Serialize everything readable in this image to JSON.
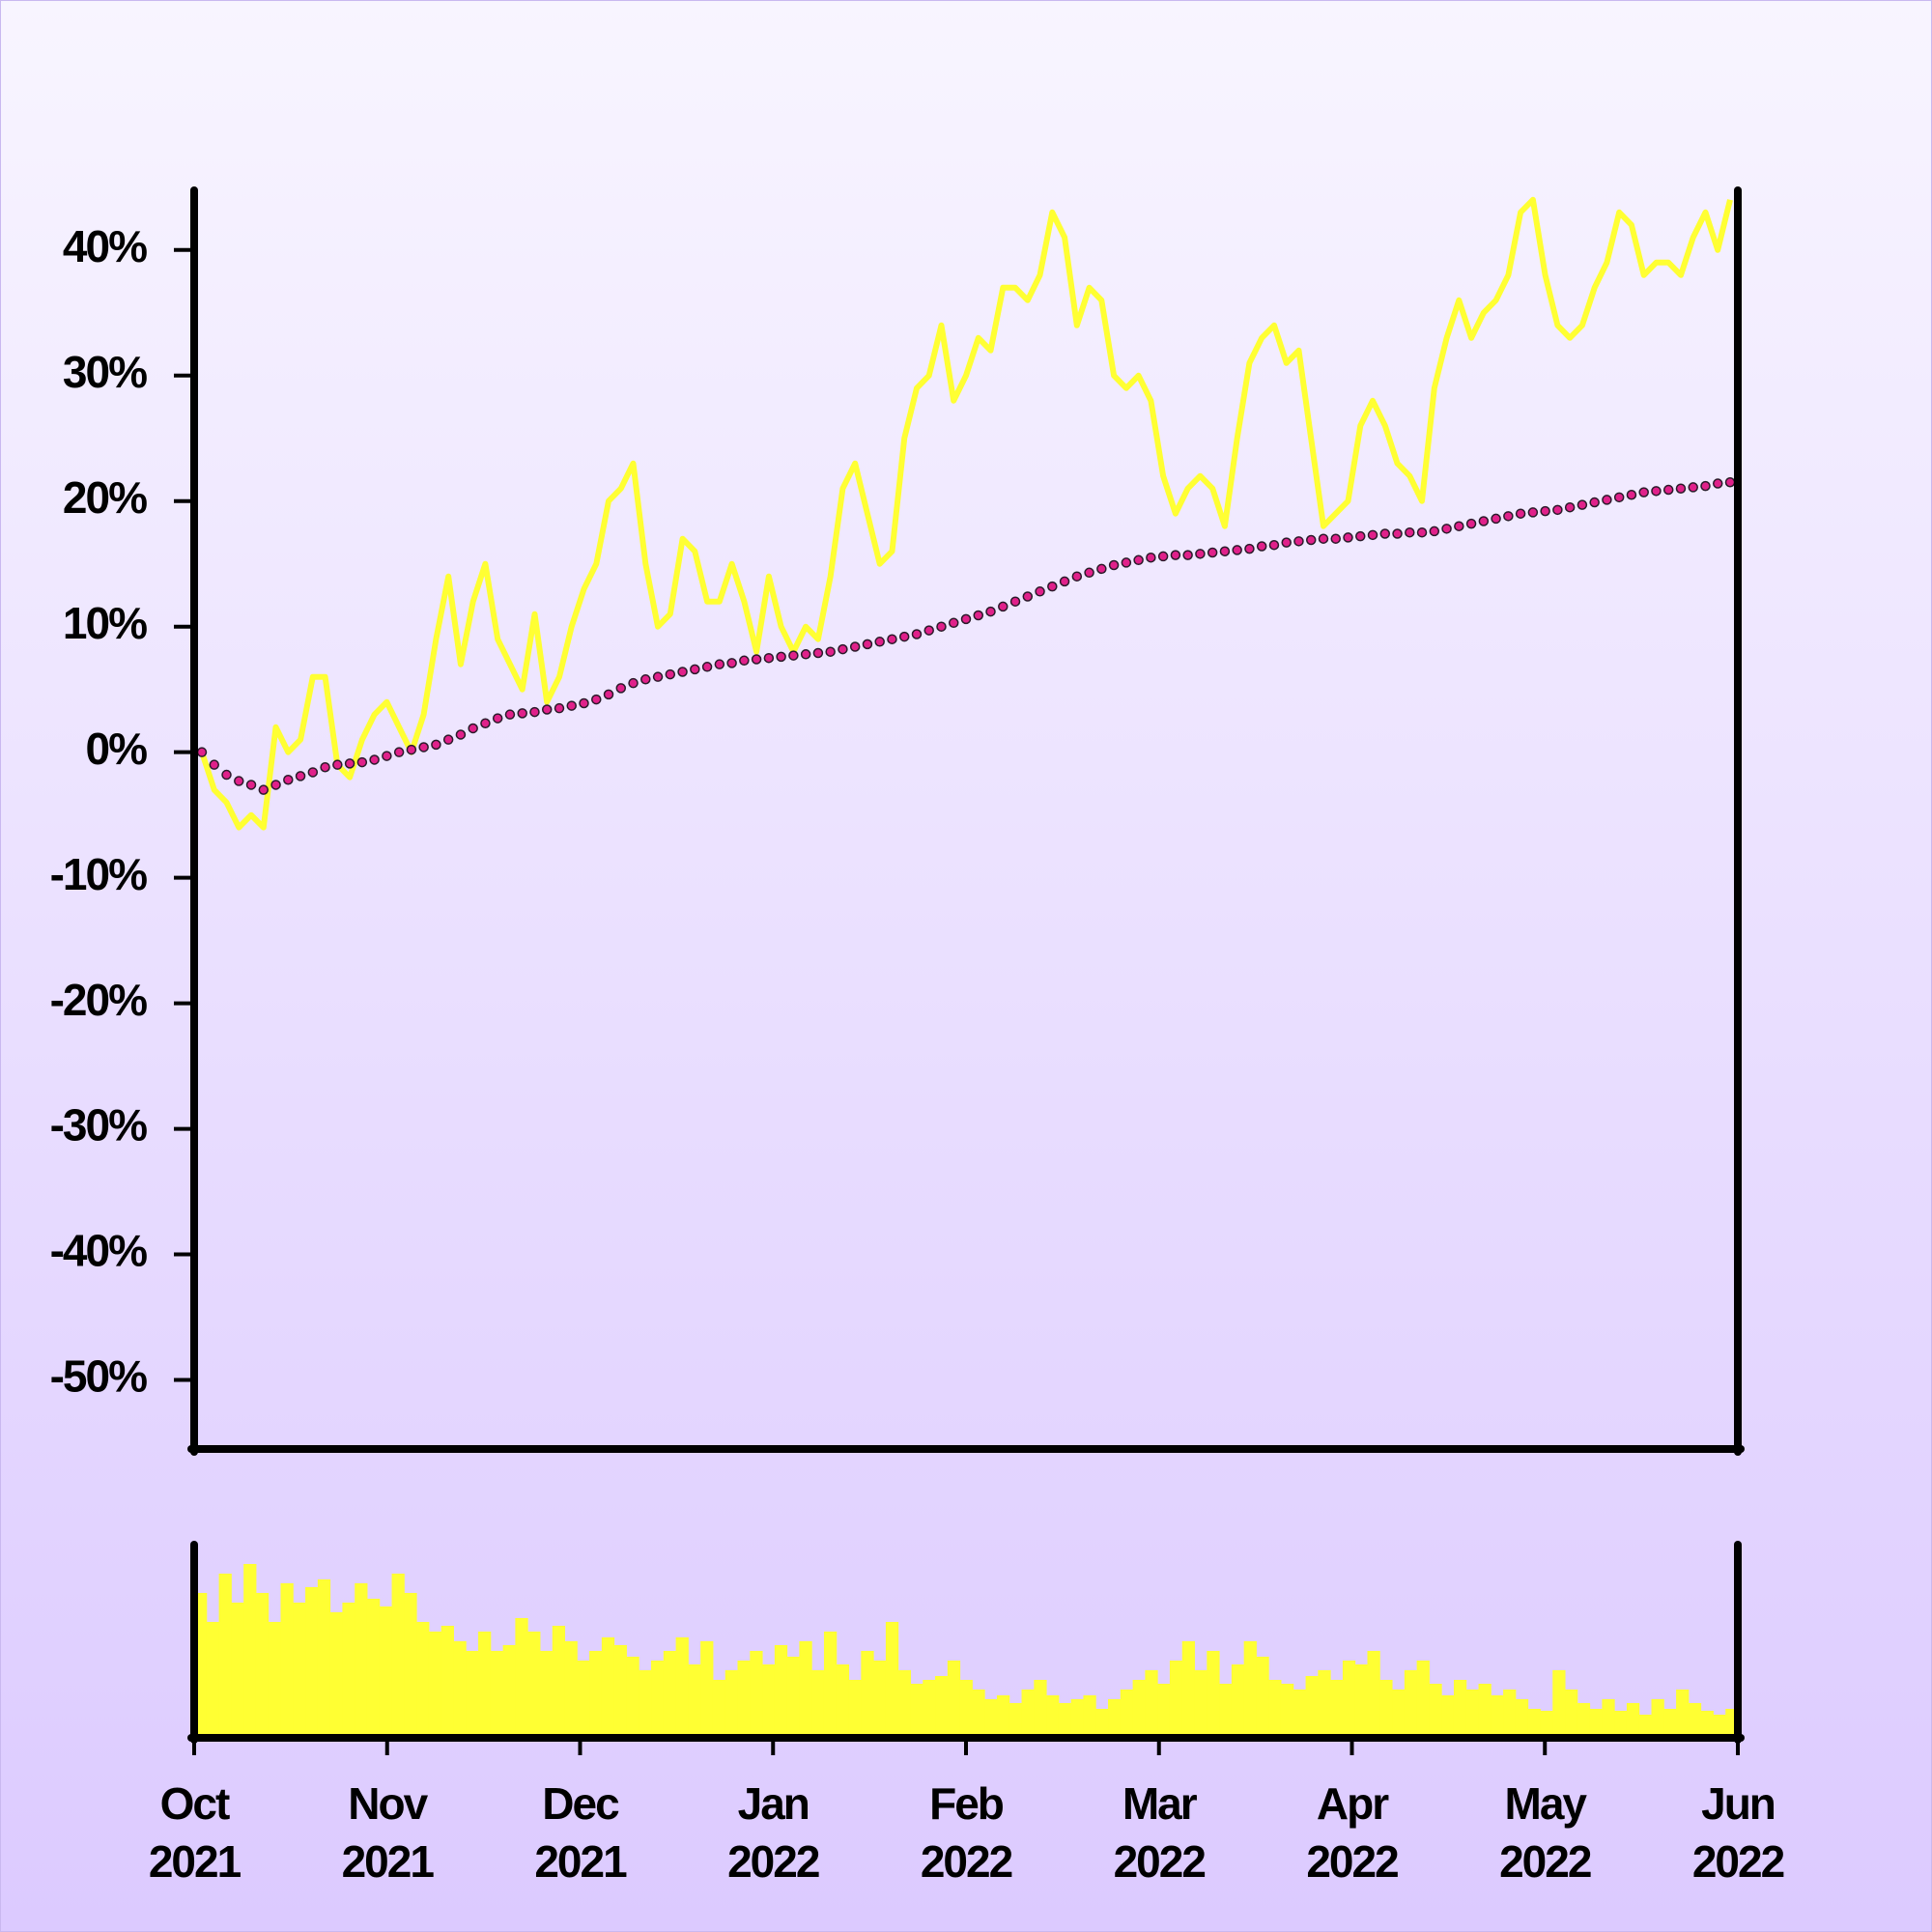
{
  "chart_data": [
    {
      "type": "line",
      "xlim": [
        "2021-10",
        "2022-06"
      ],
      "ylim": [
        -55.5,
        44.6
      ],
      "yticks": [
        {
          "value": 40,
          "label": "40%"
        },
        {
          "value": 30,
          "label": "30%"
        },
        {
          "value": 20,
          "label": "20%"
        },
        {
          "value": 10,
          "label": "10%"
        },
        {
          "value": 0,
          "label": "0%"
        },
        {
          "value": -10,
          "label": "-10%"
        },
        {
          "value": -20,
          "label": "-20%"
        },
        {
          "value": -30,
          "label": "-30%"
        },
        {
          "value": -40,
          "label": "-40%"
        },
        {
          "value": -50,
          "label": "-50%"
        }
      ],
      "series": [
        {
          "style": "line",
          "color": "#ffff33",
          "values": [
            0,
            -3,
            -4,
            -6,
            -5,
            -6,
            2,
            0,
            1,
            6,
            6,
            -1,
            -2,
            1,
            3,
            4,
            2,
            0,
            3,
            9,
            14,
            7,
            12,
            15,
            9,
            7,
            5,
            11,
            4,
            6,
            10,
            13,
            15,
            20,
            21,
            23,
            15,
            10,
            11,
            17,
            16,
            12,
            12,
            15,
            12,
            8,
            14,
            10,
            8,
            10,
            9,
            14,
            21,
            23,
            19,
            15,
            16,
            25,
            29,
            30,
            34,
            28,
            30,
            33,
            32,
            37,
            37,
            36,
            38,
            43,
            41,
            34,
            37,
            36,
            30,
            29,
            30,
            28,
            22,
            19,
            21,
            22,
            21,
            18,
            25,
            31,
            33,
            34,
            31,
            32,
            25,
            18,
            19,
            20,
            26,
            28,
            26,
            23,
            22,
            20,
            29,
            33,
            36,
            33,
            35,
            36,
            38,
            43,
            44,
            38,
            34,
            33,
            34,
            37,
            39,
            43,
            42,
            38,
            39,
            39,
            38,
            41,
            43,
            40,
            44
          ]
        },
        {
          "style": "dots",
          "color": "#e0218a",
          "values": [
            0,
            -1,
            -1.8,
            -2.3,
            -2.6,
            -3,
            -2.6,
            -2.2,
            -1.9,
            -1.6,
            -1.2,
            -1,
            -0.9,
            -0.8,
            -0.6,
            -0.3,
            0,
            0.2,
            0.4,
            0.6,
            1,
            1.4,
            1.9,
            2.3,
            2.7,
            3,
            3.1,
            3.2,
            3.4,
            3.5,
            3.7,
            3.9,
            4.2,
            4.6,
            5.1,
            5.5,
            5.8,
            6,
            6.2,
            6.4,
            6.6,
            6.8,
            7,
            7.1,
            7.3,
            7.4,
            7.5,
            7.6,
            7.7,
            7.8,
            7.9,
            8,
            8.2,
            8.4,
            8.6,
            8.8,
            9,
            9.2,
            9.4,
            9.7,
            10,
            10.3,
            10.6,
            10.9,
            11.2,
            11.6,
            12,
            12.4,
            12.8,
            13.2,
            13.6,
            14,
            14.3,
            14.6,
            14.9,
            15.1,
            15.3,
            15.5,
            15.6,
            15.7,
            15.7,
            15.8,
            15.9,
            16,
            16.1,
            16.2,
            16.4,
            16.5,
            16.7,
            16.8,
            16.9,
            17,
            17,
            17.1,
            17.2,
            17.3,
            17.4,
            17.4,
            17.5,
            17.5,
            17.6,
            17.8,
            18,
            18.2,
            18.4,
            18.6,
            18.8,
            19,
            19.1,
            19.2,
            19.3,
            19.5,
            19.7,
            19.9,
            20.1,
            20.3,
            20.5,
            20.7,
            20.8,
            20.9,
            21,
            21.1,
            21.2,
            21.4,
            21.5
          ]
        }
      ]
    },
    {
      "type": "bar",
      "xlim": [
        "2021-10",
        "2022-06"
      ],
      "ylim": [
        0,
        100
      ],
      "color": "#ffff33",
      "xticks": [
        {
          "value": "2021-10",
          "label": "Oct\n2021"
        },
        {
          "value": "2021-11",
          "label": "Nov\n2021"
        },
        {
          "value": "2021-12",
          "label": "Dec\n2021"
        },
        {
          "value": "2022-01",
          "label": "Jan\n2022"
        },
        {
          "value": "2022-02",
          "label": "Feb\n2022"
        },
        {
          "value": "2022-03",
          "label": "Mar\n2022"
        },
        {
          "value": "2022-04",
          "label": "Apr\n2022"
        },
        {
          "value": "2022-05",
          "label": "May\n2022"
        },
        {
          "value": "2022-06",
          "label": "Jun\n2022"
        }
      ],
      "values": [
        75,
        60,
        85,
        70,
        90,
        75,
        60,
        80,
        70,
        78,
        82,
        65,
        70,
        80,
        72,
        68,
        85,
        75,
        60,
        55,
        58,
        50,
        45,
        55,
        45,
        48,
        62,
        55,
        45,
        58,
        50,
        40,
        45,
        52,
        48,
        42,
        35,
        40,
        45,
        52,
        38,
        50,
        30,
        35,
        40,
        45,
        38,
        48,
        42,
        50,
        35,
        55,
        38,
        30,
        45,
        40,
        60,
        35,
        28,
        30,
        32,
        40,
        30,
        25,
        20,
        22,
        18,
        25,
        30,
        22,
        18,
        20,
        22,
        15,
        20,
        25,
        30,
        35,
        28,
        40,
        50,
        35,
        45,
        28,
        38,
        50,
        42,
        30,
        28,
        25,
        32,
        35,
        30,
        40,
        38,
        45,
        30,
        25,
        35,
        40,
        28,
        22,
        30,
        25,
        28,
        22,
        25,
        20,
        15,
        14,
        35,
        25,
        18,
        15,
        20,
        14,
        18,
        12,
        20,
        15,
        25,
        18,
        14,
        12,
        15
      ]
    }
  ]
}
